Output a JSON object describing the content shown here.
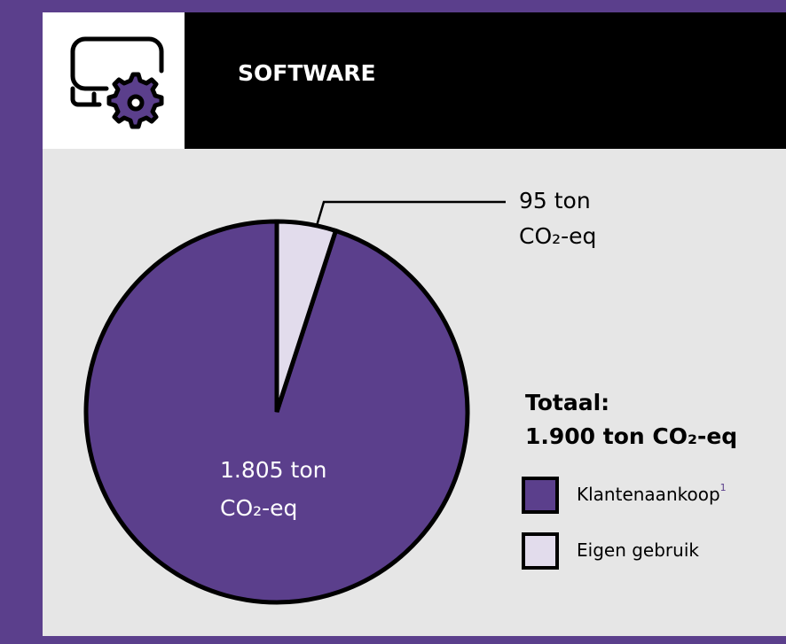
{
  "header": {
    "title": "SOFTWARE"
  },
  "chart_data": {
    "type": "pie",
    "categories": [
      "Klantenaankoop",
      "Eigen gebruik"
    ],
    "values": [
      1805,
      95
    ],
    "value_labels": [
      [
        "1.805 ton",
        "CO₂-eq"
      ],
      [
        "95 ton",
        "CO₂-eq"
      ]
    ],
    "colors": [
      "#5b3f8c",
      "#e2dcec"
    ],
    "legend_footnote": "1",
    "total_title": "Totaal:",
    "total_label": "1.900 ton CO₂-eq"
  }
}
